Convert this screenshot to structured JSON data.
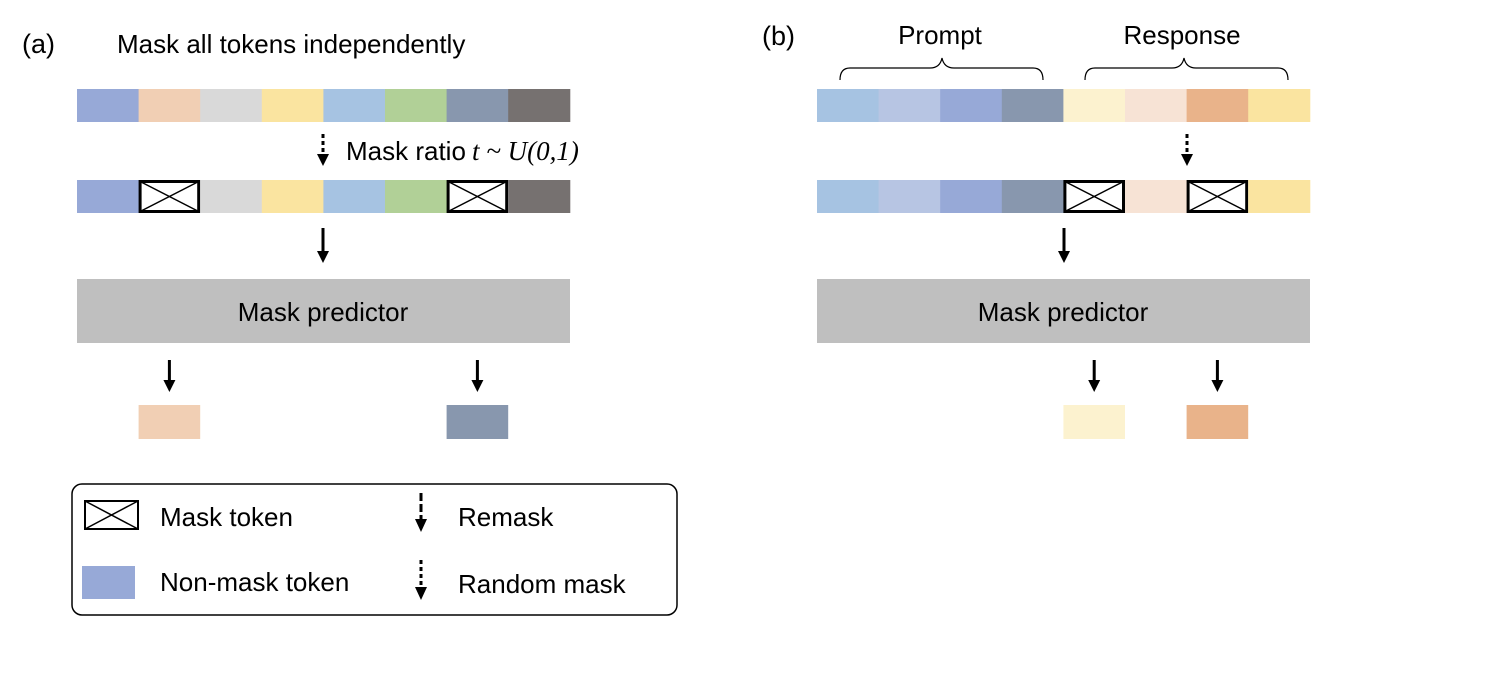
{
  "panel_a": {
    "label": "(a)",
    "title": "Mask all tokens independently",
    "input_tokens": [
      "#97a9d7",
      "#f1cfb4",
      "#d9d9d9",
      "#fae4a0",
      "#a6c3e2",
      "#b1d097",
      "#8897ae",
      "#767170"
    ],
    "masked_tokens": [
      "#97a9d7",
      "mask",
      "#d9d9d9",
      "#fae4a0",
      "#a6c3e2",
      "#b1d097",
      "mask",
      "#767170"
    ],
    "mask_ratio_label": "Mask ratio",
    "mask_ratio_formula": "t ~ U(0,1)",
    "predictor_label": "Mask predictor",
    "predicted_tokens": [
      {
        "slot": 1,
        "color": "#f1cfb4"
      },
      {
        "slot": 6,
        "color": "#8897ae"
      }
    ]
  },
  "panel_b": {
    "label": "(b)",
    "prompt_label": "Prompt",
    "response_label": "Response",
    "input_tokens": [
      "#a6c3e2",
      "#b7c5e3",
      "#97a9d7",
      "#8897ae",
      "#fcf2cf",
      "#f7e3d5",
      "#e9b38a",
      "#fae4a0"
    ],
    "masked_tokens": [
      "#a6c3e2",
      "#b7c5e3",
      "#97a9d7",
      "#8897ae",
      "mask",
      "#f7e3d5",
      "mask",
      "#fae4a0"
    ],
    "predictor_label": "Mask predictor",
    "predicted_tokens": [
      {
        "slot": 4,
        "color": "#fcf2cf"
      },
      {
        "slot": 6,
        "color": "#e9b38a"
      }
    ]
  },
  "legend": {
    "mask_token": "Mask token",
    "non_mask_token": "Non-mask token",
    "non_mask_color": "#97a9d7",
    "remask": "Remask",
    "random_mask": "Random mask"
  },
  "colors": {
    "predictor_fill": "#bfbfbf"
  }
}
